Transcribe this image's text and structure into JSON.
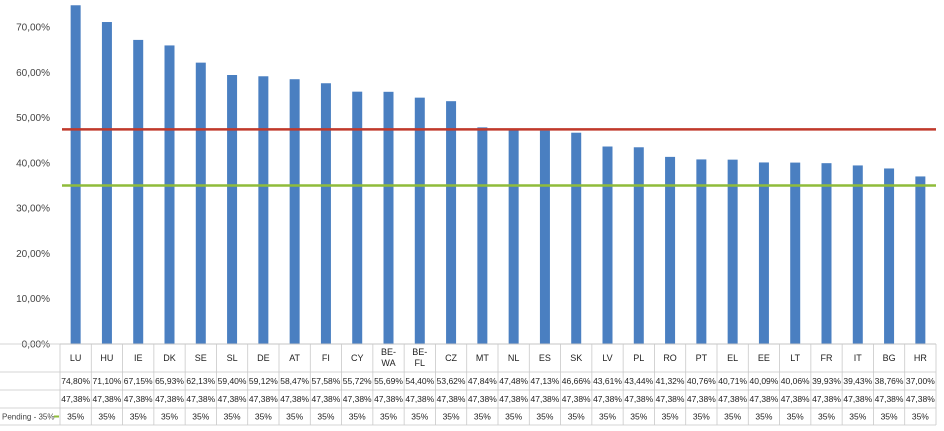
{
  "chart_data": {
    "type": "bar",
    "categories": [
      "LU",
      "HU",
      "IE",
      "DK",
      "SE",
      "SL",
      "DE",
      "AT",
      "FI",
      "CY",
      "BE-WA",
      "BE-FL",
      "CZ",
      "MT",
      "NL",
      "ES",
      "SK",
      "LV",
      "PL",
      "RO",
      "PT",
      "EL",
      "EE",
      "LT",
      "FR",
      "IT",
      "BG",
      "HR"
    ],
    "series": [
      {
        "values": [
          74.8,
          71.1,
          67.15,
          65.93,
          62.13,
          59.4,
          59.12,
          58.47,
          57.58,
          55.72,
          55.69,
          54.4,
          53.62,
          47.84,
          47.48,
          47.13,
          46.66,
          43.61,
          43.44,
          41.32,
          40.76,
          40.71,
          40.09,
          40.06,
          39.93,
          39.43,
          38.76,
          37.0
        ],
        "color": "#4a7fc1"
      },
      {
        "values": [
          47.38,
          47.38,
          47.38,
          47.38,
          47.38,
          47.38,
          47.38,
          47.38,
          47.38,
          47.38,
          47.38,
          47.38,
          47.38,
          47.38,
          47.38,
          47.38,
          47.38,
          47.38,
          47.38,
          47.38,
          47.38,
          47.38,
          47.38,
          47.38,
          47.38,
          47.38,
          47.38,
          47.38
        ],
        "color": "#c0392b",
        "display": "line"
      },
      {
        "name": "Pending - 35%",
        "values": [
          35,
          35,
          35,
          35,
          35,
          35,
          35,
          35,
          35,
          35,
          35,
          35,
          35,
          35,
          35,
          35,
          35,
          35,
          35,
          35,
          35,
          35,
          35,
          35,
          35,
          35,
          35,
          35
        ],
        "color": "#8fbc3a",
        "display": "line"
      }
    ],
    "ylim": [
      0,
      70
    ],
    "ytick_values": [
      0,
      10,
      20,
      30,
      40,
      50,
      60,
      70
    ],
    "ytick_labels": [
      "0,00%",
      "10,00%",
      "20,00%",
      "30,00%",
      "40,00%",
      "50,00%",
      "60,00%",
      "70,00%"
    ],
    "table_rows": [
      [
        "74,80%",
        "71,10%",
        "67,15%",
        "65,93%",
        "62,13%",
        "59,40%",
        "59,12%",
        "58,47%",
        "57,58%",
        "55,72%",
        "55,69%",
        "54,40%",
        "53,62%",
        "47,84%",
        "47,48%",
        "47,13%",
        "46,66%",
        "43,61%",
        "43,44%",
        "41,32%",
        "40,76%",
        "40,71%",
        "40,09%",
        "40,06%",
        "39,93%",
        "39,43%",
        "38,76%",
        "37,00%"
      ],
      [
        "47,38%",
        "47,38%",
        "47,38%",
        "47,38%",
        "47,38%",
        "47,38%",
        "47,38%",
        "47,38%",
        "47,38%",
        "47,38%",
        "47,38%",
        "47,38%",
        "47,38%",
        "47,38%",
        "47,38%",
        "47,38%",
        "47,38%",
        "47,38%",
        "47,38%",
        "47,38%",
        "47,38%",
        "47,38%",
        "47,38%",
        "47,38%",
        "47,38%",
        "47,38%",
        "47,38%",
        "47,38%"
      ],
      [
        "35%",
        "35%",
        "35%",
        "35%",
        "35%",
        "35%",
        "35%",
        "35%",
        "35%",
        "35%",
        "35%",
        "35%",
        "35%",
        "35%",
        "35%",
        "35%",
        "35%",
        "35%",
        "35%",
        "35%",
        "35%",
        "35%",
        "35%",
        "35%",
        "35%",
        "35%",
        "35%",
        "35%"
      ]
    ],
    "row_titles": [
      "",
      "",
      "Pending - 35%"
    ],
    "grid": false,
    "title": "",
    "xlabel": "",
    "ylabel": ""
  }
}
